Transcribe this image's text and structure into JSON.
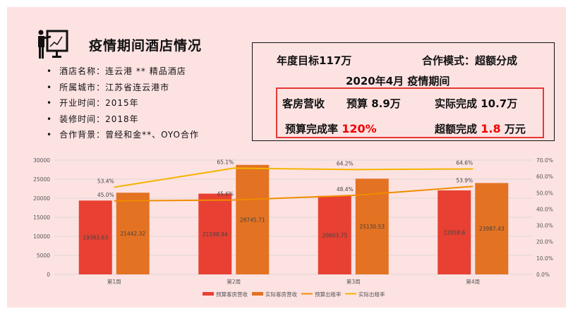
{
  "header": {
    "title": "疫情期间酒店情况"
  },
  "info": [
    "酒店名称：连云港 ** 精品酒店",
    "所属城市：江苏省连云港市",
    "开业时间：2015年",
    "装修时间：2018年",
    "合作背景：曾经和金**、OYO合作"
  ],
  "summary": {
    "target": "年度目标117万",
    "mode": "合作模式：超额分成",
    "period": "2020年4月 疫情期间",
    "room_label": "客房营收",
    "budget": "预算 8.9万",
    "actual": "实际完成 10.7万",
    "rate_label": "预算完成率",
    "rate_value": "120%",
    "over_label": "超额完成",
    "over_value": "1.8",
    "over_unit": "万元"
  },
  "chart_data": {
    "type": "bar",
    "categories": [
      "第1周",
      "第2周",
      "第3周",
      "第4周"
    ],
    "series": [
      {
        "name": "预算客房营收",
        "kind": "bar",
        "axis": "left",
        "color": "#e84032",
        "values": [
          19383.63,
          21198.94,
          20603.75,
          22058.6
        ],
        "labels": [
          "19383.63",
          "21198.94",
          "20603.75",
          "22058.6"
        ]
      },
      {
        "name": "实际客房营收",
        "kind": "bar",
        "axis": "left",
        "color": "#e37222",
        "values": [
          21442.32,
          28745.71,
          25130.53,
          23987.43
        ],
        "labels": [
          "21442.32",
          "28745.71",
          "25130.53",
          "23987.43"
        ]
      },
      {
        "name": "预算出租率",
        "kind": "line",
        "axis": "right",
        "color": "#f08c00",
        "values": [
          45.0,
          45.6,
          48.4,
          53.9
        ],
        "labels": [
          "45.0%",
          "45.6%",
          "48.4%",
          "53.9%"
        ]
      },
      {
        "name": "实际出租率",
        "kind": "line",
        "axis": "right",
        "color": "#f5b400",
        "values": [
          53.4,
          65.1,
          64.2,
          64.6
        ],
        "labels": [
          "53.4%",
          "65.1%",
          "64.2%",
          "64.6%"
        ]
      }
    ],
    "ylim": [
      0,
      30000
    ],
    "yticks": [
      "0",
      "5000",
      "10000",
      "15000",
      "20000",
      "25000",
      "30000"
    ],
    "y2lim": [
      0,
      70
    ],
    "y2ticks": [
      "0.0%",
      "10.0%",
      "20.0%",
      "30.0%",
      "40.0%",
      "50.0%",
      "60.0%",
      "70.0%"
    ],
    "legend": "bottom-right",
    "grid": true
  }
}
